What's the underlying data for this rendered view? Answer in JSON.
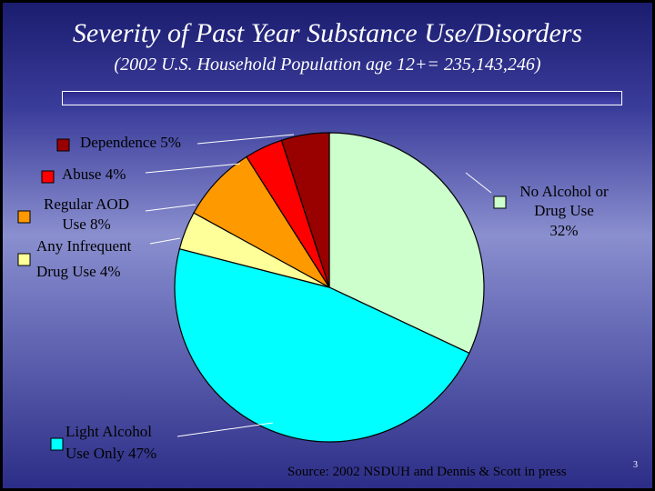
{
  "slide": {
    "title": "Severity of Past Year Substance Use/Disorders",
    "subtitle": "(2002 U.S. Household Population age 12+= 235,143,246)",
    "source": "Source: 2002 NSDUH and Dennis & Scott in press",
    "page_number": "3"
  },
  "chart_data": {
    "type": "pie",
    "title": "Severity of Past Year Substance Use/Disorders",
    "slices": [
      {
        "label_lines": [
          "No Alcohol or",
          "Drug Use",
          "32%"
        ],
        "category": "No Alcohol or Drug Use",
        "value": 32,
        "color": "#ccffcc"
      },
      {
        "label_lines": [
          "Light Alcohol",
          "Use Only 47%"
        ],
        "category": "Light Alcohol Use Only",
        "value": 47,
        "color": "#00ffff"
      },
      {
        "label_lines": [
          "Any Infrequent",
          "Drug Use 4%"
        ],
        "category": "Any Infrequent Drug Use",
        "value": 4,
        "color": "#ffff99"
      },
      {
        "label_lines": [
          "Regular AOD",
          "Use 8%"
        ],
        "category": "Regular AOD Use",
        "value": 8,
        "color": "#ff9900"
      },
      {
        "label_lines": [
          "Abuse 4%"
        ],
        "category": "Abuse",
        "value": 4,
        "color": "#ff0000"
      },
      {
        "label_lines": [
          "Dependence 5%"
        ],
        "category": "Dependence",
        "value": 5,
        "color": "#990000"
      }
    ]
  }
}
